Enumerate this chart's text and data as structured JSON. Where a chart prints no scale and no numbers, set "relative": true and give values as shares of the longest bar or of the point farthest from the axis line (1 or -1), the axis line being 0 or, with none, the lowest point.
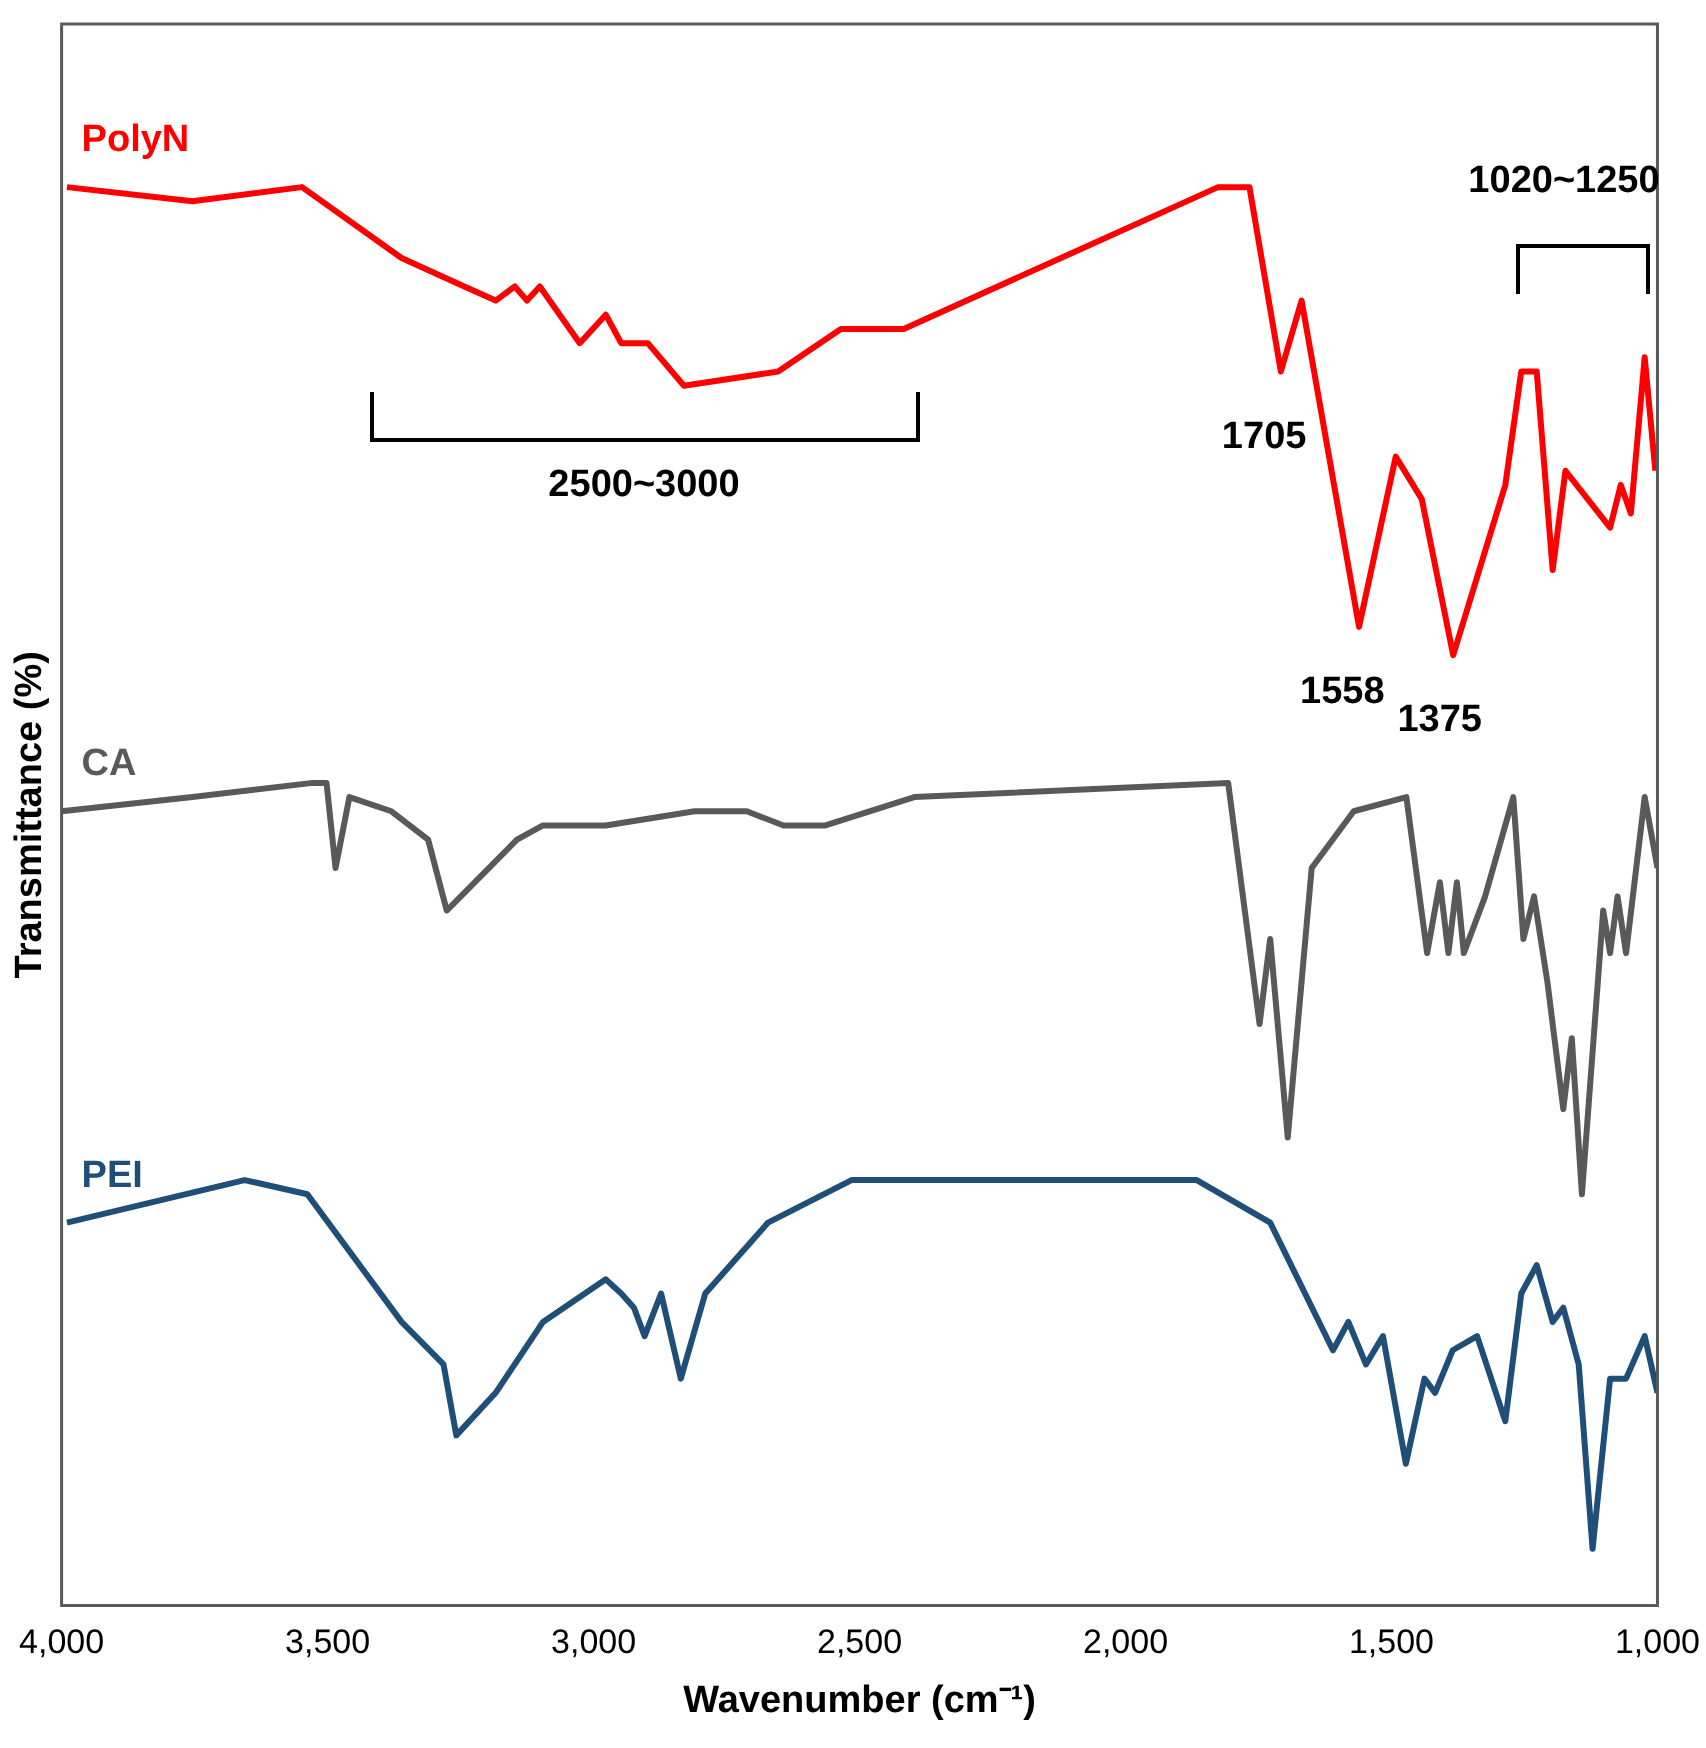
{
  "chart_data": {
    "type": "line",
    "relative": true,
    "xlabel": "Wavenumber (cm⁻¹)",
    "ylabel": "Transmittance (%)",
    "xlim": [
      4000,
      1000
    ],
    "xticks": [
      {
        "value": 4000,
        "label": "4,000"
      },
      {
        "value": 3500,
        "label": "3,500"
      },
      {
        "value": 3000,
        "label": "3,000"
      },
      {
        "value": 2500,
        "label": "2,500"
      },
      {
        "value": 2000,
        "label": "2,000"
      },
      {
        "value": 1500,
        "label": "1,500"
      },
      {
        "value": 1000,
        "label": "1,000"
      }
    ],
    "grid": false,
    "legend": false,
    "marker": "none",
    "line_style": "solid",
    "series": [
      {
        "name": "PolyN",
        "color": "#ff0000",
        "x": [
          3990,
          3754,
          3548,
          3361,
          3243,
          3184,
          3148,
          3125,
          3101,
          3026,
          2977,
          2948,
          2898,
          2830,
          2653,
          2535,
          2417,
          1826,
          1767,
          1708,
          1669,
          1561,
          1492,
          1443,
          1384,
          1286,
          1256,
          1227,
          1197,
          1173,
          1089,
          1069,
          1050,
          1024,
          1004
        ],
        "values": [
          1.0,
          0.99,
          1.0,
          0.95,
          0.93,
          0.92,
          0.93,
          0.92,
          0.93,
          0.89,
          0.91,
          0.89,
          0.89,
          0.86,
          0.87,
          0.9,
          0.9,
          1.0,
          1.0,
          0.87,
          0.92,
          0.69,
          0.81,
          0.78,
          0.67,
          0.79,
          0.87,
          0.87,
          0.73,
          0.8,
          0.76,
          0.79,
          0.77,
          0.88,
          0.8
        ]
      },
      {
        "name": "CA",
        "color": "#595959",
        "x": [
          4000,
          3754,
          3528,
          3502,
          3485,
          3459,
          3380,
          3311,
          3276,
          3223,
          3144,
          3095,
          2977,
          2810,
          2712,
          2643,
          2594,
          2564,
          2397,
          1807,
          1748,
          1728,
          1695,
          1650,
          1571,
          1472,
          1433,
          1409,
          1393,
          1377,
          1364,
          1324,
          1271,
          1252,
          1232,
          1207,
          1177,
          1161,
          1142,
          1102,
          1089,
          1075,
          1059,
          1024,
          1000
        ],
        "values": [
          0.56,
          0.57,
          0.58,
          0.58,
          0.52,
          0.57,
          0.56,
          0.54,
          0.49,
          0.51,
          0.54,
          0.55,
          0.55,
          0.56,
          0.56,
          0.55,
          0.55,
          0.55,
          0.57,
          0.58,
          0.41,
          0.47,
          0.33,
          0.52,
          0.56,
          0.57,
          0.46,
          0.51,
          0.46,
          0.51,
          0.46,
          0.5,
          0.57,
          0.47,
          0.5,
          0.44,
          0.35,
          0.4,
          0.29,
          0.49,
          0.46,
          0.5,
          0.46,
          0.57,
          0.52
        ]
      },
      {
        "name": "PEI",
        "color": "#1f4e79",
        "x": [
          3990,
          3656,
          3538,
          3361,
          3282,
          3258,
          3184,
          3095,
          2977,
          2948,
          2924,
          2904,
          2873,
          2836,
          2790,
          2672,
          2515,
          2181,
          1866,
          1728,
          1610,
          1581,
          1548,
          1516,
          1473,
          1438,
          1418,
          1385,
          1339,
          1286,
          1256,
          1227,
          1197,
          1177,
          1148,
          1122,
          1089,
          1059,
          1024,
          1000
        ],
        "values": [
          0.27,
          0.3,
          0.29,
          0.2,
          0.17,
          0.12,
          0.15,
          0.2,
          0.23,
          0.22,
          0.21,
          0.19,
          0.22,
          0.16,
          0.22,
          0.27,
          0.3,
          0.3,
          0.3,
          0.27,
          0.18,
          0.2,
          0.17,
          0.19,
          0.1,
          0.16,
          0.15,
          0.18,
          0.19,
          0.13,
          0.22,
          0.24,
          0.2,
          0.21,
          0.17,
          0.04,
          0.16,
          0.16,
          0.19,
          0.15
        ]
      }
    ],
    "annotations": [
      {
        "text": "1705",
        "x": 1705,
        "y": 0.87
      },
      {
        "text": "1558",
        "x": 1558,
        "y": 0.69
      },
      {
        "text": "1375",
        "x": 1375,
        "y": 0.67
      },
      "2500~3000",
      "1020~1250"
    ]
  }
}
